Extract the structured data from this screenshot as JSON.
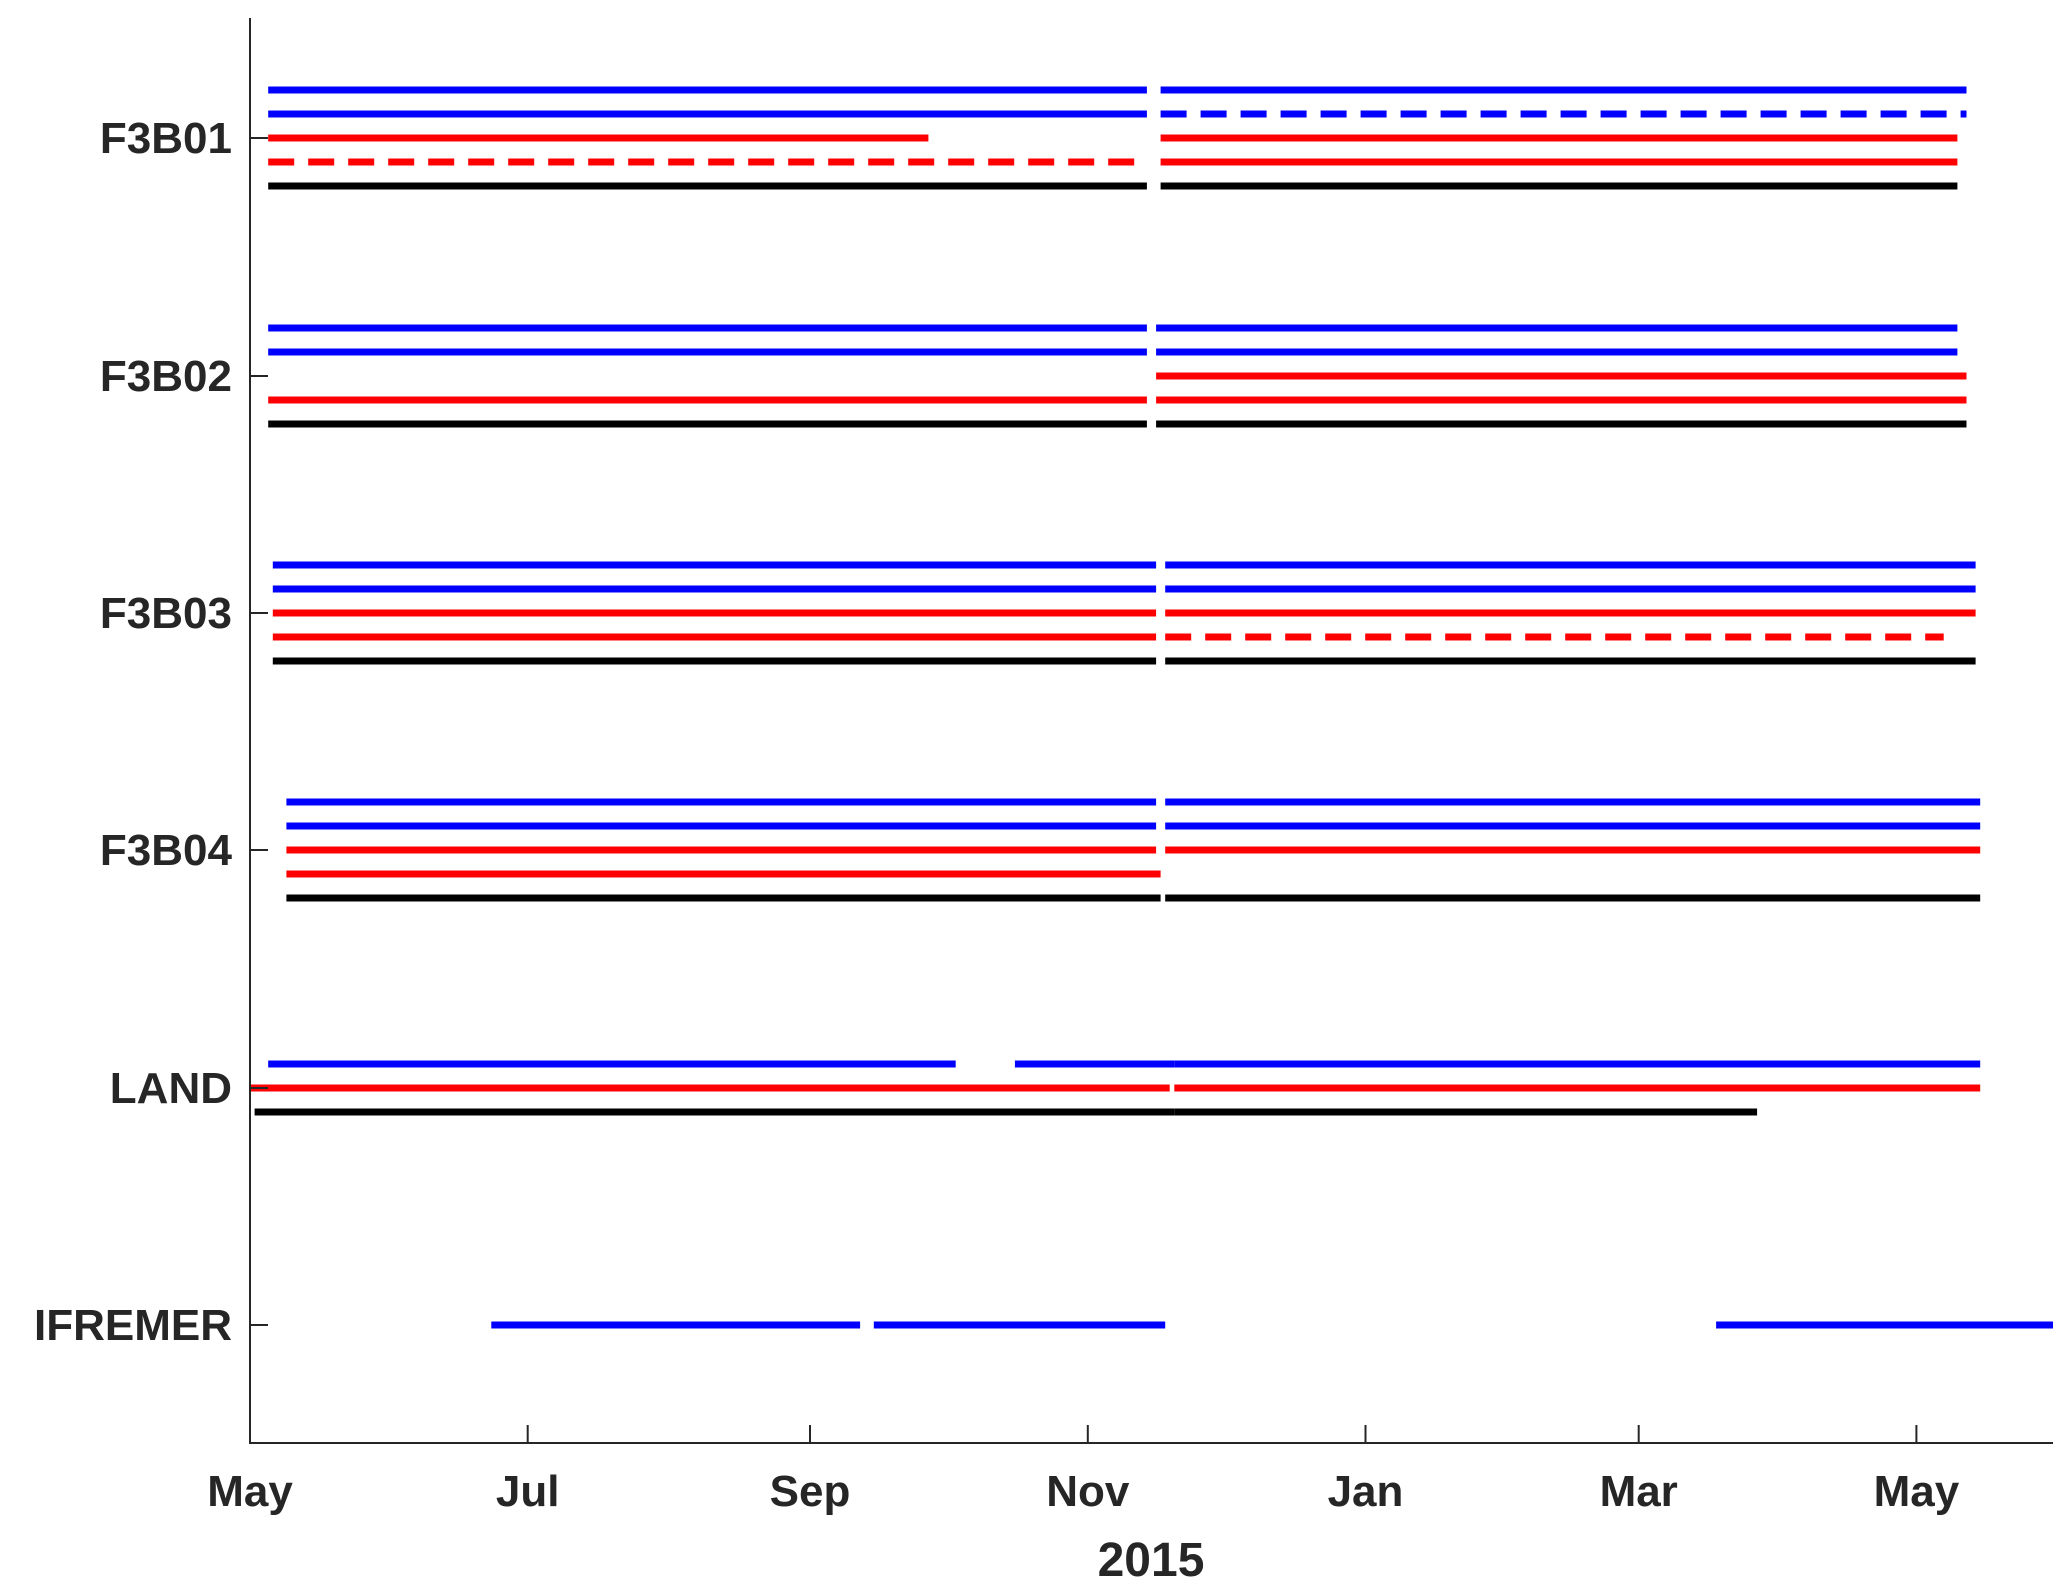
{
  "chart_data": {
    "type": "timeline",
    "title": "",
    "xlabel": "2015",
    "ylabel": "",
    "xlim": [
      "2015-05-01",
      "2016-05-31"
    ],
    "grid": false,
    "x_ticks": [
      "May",
      "Jul",
      "Sep",
      "Nov",
      "Jan",
      "Mar",
      "May"
    ],
    "x_tick_dates": [
      "2015-05-01",
      "2015-07-01",
      "2015-09-01",
      "2015-11-01",
      "2016-01-01",
      "2016-03-01",
      "2016-05-01"
    ],
    "colors": {
      "blue": "#0000ff",
      "red": "#ff0000",
      "black": "#000000"
    },
    "groups": [
      {
        "label": "F3B01",
        "rows": [
          {
            "color": "blue",
            "segments": [
              [
                "2015-05-05",
                "2015-11-14"
              ],
              [
                "2015-11-17",
                "2016-05-12"
              ]
            ]
          },
          {
            "color": "blue",
            "segments": [
              [
                "2015-05-05",
                "2015-11-14"
              ],
              [
                "2015-11-17",
                "2016-05-12",
                "dashed"
              ]
            ]
          },
          {
            "color": "red",
            "segments": [
              [
                "2015-05-05",
                "2015-09-27"
              ],
              [
                "2015-11-17",
                "2016-05-10"
              ]
            ]
          },
          {
            "color": "red",
            "segments": [
              [
                "2015-05-05",
                "2015-11-14",
                "dashed"
              ],
              [
                "2015-11-17",
                "2016-05-10"
              ]
            ]
          },
          {
            "color": "black",
            "segments": [
              [
                "2015-05-05",
                "2015-11-14"
              ],
              [
                "2015-11-17",
                "2016-05-10"
              ]
            ]
          }
        ]
      },
      {
        "label": "F3B02",
        "rows": [
          {
            "color": "blue",
            "segments": [
              [
                "2015-05-05",
                "2015-11-14"
              ],
              [
                "2015-11-16",
                "2016-05-10"
              ]
            ]
          },
          {
            "color": "blue",
            "segments": [
              [
                "2015-05-05",
                "2015-11-14"
              ],
              [
                "2015-11-16",
                "2016-05-10"
              ]
            ]
          },
          {
            "color": "red",
            "segments": [
              [
                "2015-11-16",
                "2016-05-12"
              ]
            ]
          },
          {
            "color": "red",
            "segments": [
              [
                "2015-05-05",
                "2015-11-14"
              ],
              [
                "2015-11-16",
                "2016-05-12"
              ]
            ]
          },
          {
            "color": "black",
            "segments": [
              [
                "2015-05-05",
                "2015-11-14"
              ],
              [
                "2015-11-16",
                "2016-05-12"
              ]
            ]
          }
        ]
      },
      {
        "label": "F3B03",
        "rows": [
          {
            "color": "blue",
            "segments": [
              [
                "2015-05-06",
                "2015-11-16"
              ],
              [
                "2015-11-18",
                "2016-05-14"
              ]
            ]
          },
          {
            "color": "blue",
            "segments": [
              [
                "2015-05-06",
                "2015-11-16"
              ],
              [
                "2015-11-18",
                "2016-05-14"
              ]
            ]
          },
          {
            "color": "red",
            "segments": [
              [
                "2015-05-06",
                "2015-11-16"
              ],
              [
                "2015-11-18",
                "2016-05-14"
              ]
            ]
          },
          {
            "color": "red",
            "segments": [
              [
                "2015-05-06",
                "2015-11-16"
              ],
              [
                "2015-11-18",
                "2016-05-07",
                "dashed"
              ]
            ]
          },
          {
            "color": "black",
            "segments": [
              [
                "2015-05-06",
                "2015-11-16"
              ],
              [
                "2015-11-18",
                "2016-05-14"
              ]
            ]
          }
        ]
      },
      {
        "label": "F3B04",
        "rows": [
          {
            "color": "blue",
            "segments": [
              [
                "2015-05-09",
                "2015-11-16"
              ],
              [
                "2015-11-18",
                "2016-05-15"
              ]
            ]
          },
          {
            "color": "blue",
            "segments": [
              [
                "2015-05-09",
                "2015-11-16"
              ],
              [
                "2015-11-18",
                "2016-05-15"
              ]
            ]
          },
          {
            "color": "red",
            "segments": [
              [
                "2015-05-09",
                "2015-11-16"
              ],
              [
                "2015-11-18",
                "2016-05-15"
              ]
            ]
          },
          {
            "color": "red",
            "segments": [
              [
                "2015-05-09",
                "2015-11-17"
              ]
            ]
          },
          {
            "color": "black",
            "segments": [
              [
                "2015-05-09",
                "2015-11-17"
              ],
              [
                "2015-11-18",
                "2016-05-15"
              ]
            ]
          }
        ]
      },
      {
        "label": "LAND",
        "rows": [
          {
            "color": "blue",
            "segments": [
              [
                "2015-05-05",
                "2015-10-03"
              ],
              [
                "2015-10-16",
                "2015-11-20"
              ],
              [
                "2015-11-20",
                "2016-05-15"
              ]
            ]
          },
          {
            "color": "red",
            "segments": [
              [
                "2015-05-01",
                "2015-11-19"
              ],
              [
                "2015-11-20",
                "2016-05-15"
              ]
            ]
          },
          {
            "color": "black",
            "segments": [
              [
                "2015-05-02",
                "2015-11-20"
              ],
              [
                "2015-11-20",
                "2016-03-27"
              ]
            ]
          }
        ]
      },
      {
        "label": "IFREMER",
        "rows": [
          {
            "color": "blue",
            "segments": [
              [
                "2015-06-23",
                "2015-09-12"
              ],
              [
                "2015-09-15",
                "2015-11-18"
              ],
              [
                "2016-03-18",
                "2016-05-31"
              ]
            ]
          }
        ]
      }
    ]
  }
}
